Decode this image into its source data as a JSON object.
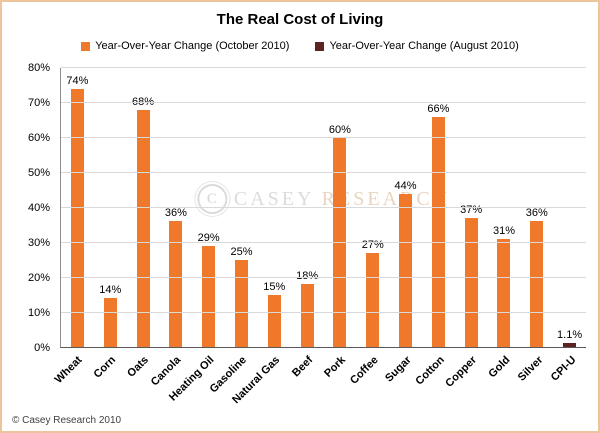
{
  "title": "The Real Cost of Living",
  "footer": "© Casey Research 2010",
  "watermark": {
    "part1": "CASEY",
    "part2": "RESEARCH",
    "logo_letter": "C"
  },
  "legend": [
    {
      "label": "Year-Over-Year Change (October 2010)",
      "color": "#f0782a"
    },
    {
      "label": "Year-Over-Year  Change (August 2010)",
      "color": "#5a2421"
    }
  ],
  "chart_data": {
    "type": "bar",
    "title": "The Real Cost of Living",
    "categories": [
      "Wheat",
      "Corn",
      "Oats",
      "Canola",
      "Heating Oil",
      "Gasoline",
      "Natural Gas",
      "Beef",
      "Pork",
      "Coffee",
      "Sugar",
      "Cotton",
      "Copper",
      "Gold",
      "Silver",
      "CPI-U"
    ],
    "series": [
      {
        "name": "Year-Over-Year Change (October 2010)",
        "color": "#f0782a",
        "values": [
          74,
          14,
          68,
          36,
          29,
          25,
          15,
          18,
          60,
          27,
          44,
          66,
          37,
          31,
          36,
          null
        ]
      },
      {
        "name": "Year-Over-Year  Change (August 2010)",
        "color": "#5a2421",
        "values": [
          null,
          null,
          null,
          null,
          null,
          null,
          null,
          null,
          null,
          null,
          null,
          null,
          null,
          null,
          null,
          1.1
        ]
      }
    ],
    "bar_labels": [
      "74%",
      "14%",
      "68%",
      "36%",
      "29%",
      "25%",
      "15%",
      "18%",
      "60%",
      "27%",
      "44%",
      "66%",
      "37%",
      "31%",
      "36%",
      "1.1%"
    ],
    "xlabel": "",
    "ylabel": "",
    "ylim": [
      0,
      80
    ],
    "ytick_labels": [
      "0%",
      "10%",
      "20%",
      "30%",
      "40%",
      "50%",
      "60%",
      "70%",
      "80%"
    ],
    "grid": "horizontal",
    "legend_position": "top"
  }
}
